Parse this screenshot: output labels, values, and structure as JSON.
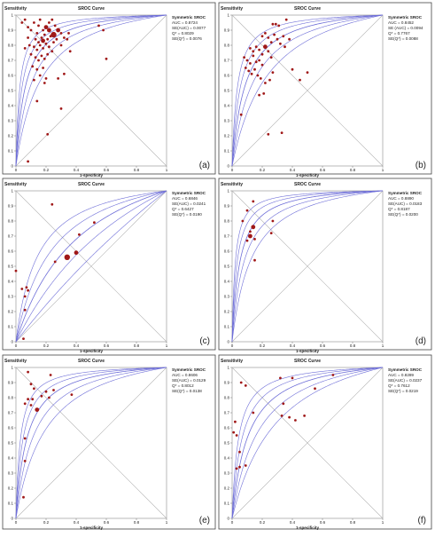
{
  "common": {
    "title": "SROC Curve",
    "xlabel": "1-specificity",
    "ylabel": "Sensitivity",
    "stats_header": "Symmetric SROC",
    "ticks": [
      0,
      0.1,
      0.2,
      0.3,
      0.4,
      0.5,
      0.6,
      0.7,
      0.8,
      0.9,
      1
    ],
    "xticks": [
      0,
      0.2,
      0.4,
      0.6,
      0.8,
      1
    ],
    "point_color": "#a01818",
    "curve_color": "#6f6fd8",
    "diag_color": "#b4b4b4"
  },
  "chart_data": [
    {
      "label": "(a)",
      "type": "scatter",
      "title": "SROC Curve",
      "xlabel": "1-specificity",
      "ylabel": "Sensitivity",
      "xlim": [
        0,
        1
      ],
      "ylim": [
        0,
        1
      ],
      "stats": [
        "AUC = 0.8724",
        "SE(AUC) = 0.0077",
        "Q* = 0.8029",
        "SE(Q*) = 0.0076"
      ],
      "auc": 0.8724,
      "points": [
        {
          "x": 0.04,
          "y": 0.95,
          "s": 1
        },
        {
          "x": 0.06,
          "y": 0.97,
          "s": 1
        },
        {
          "x": 0.08,
          "y": 0.92,
          "s": 1
        },
        {
          "x": 0.1,
          "y": 0.9,
          "s": 1
        },
        {
          "x": 0.12,
          "y": 0.95,
          "s": 1
        },
        {
          "x": 0.14,
          "y": 0.88,
          "s": 1
        },
        {
          "x": 0.15,
          "y": 0.93,
          "s": 1
        },
        {
          "x": 0.16,
          "y": 0.97,
          "s": 1
        },
        {
          "x": 0.18,
          "y": 0.9,
          "s": 1
        },
        {
          "x": 0.2,
          "y": 0.92,
          "s": 2
        },
        {
          "x": 0.22,
          "y": 0.95,
          "s": 1
        },
        {
          "x": 0.24,
          "y": 0.97,
          "s": 1
        },
        {
          "x": 0.26,
          "y": 0.93,
          "s": 1
        },
        {
          "x": 0.28,
          "y": 0.9,
          "s": 2
        },
        {
          "x": 0.3,
          "y": 0.88,
          "s": 1
        },
        {
          "x": 0.32,
          "y": 0.85,
          "s": 1
        },
        {
          "x": 0.34,
          "y": 0.84,
          "s": 1
        },
        {
          "x": 0.35,
          "y": 0.88,
          "s": 1
        },
        {
          "x": 0.13,
          "y": 0.84,
          "s": 1
        },
        {
          "x": 0.15,
          "y": 0.82,
          "s": 1
        },
        {
          "x": 0.17,
          "y": 0.85,
          "s": 1
        },
        {
          "x": 0.19,
          "y": 0.87,
          "s": 1
        },
        {
          "x": 0.21,
          "y": 0.84,
          "s": 1
        },
        {
          "x": 0.23,
          "y": 0.86,
          "s": 1
        },
        {
          "x": 0.25,
          "y": 0.82,
          "s": 1
        },
        {
          "x": 0.27,
          "y": 0.84,
          "s": 1
        },
        {
          "x": 0.12,
          "y": 0.79,
          "s": 1
        },
        {
          "x": 0.14,
          "y": 0.77,
          "s": 1
        },
        {
          "x": 0.16,
          "y": 0.8,
          "s": 1
        },
        {
          "x": 0.18,
          "y": 0.78,
          "s": 1
        },
        {
          "x": 0.2,
          "y": 0.81,
          "s": 1
        },
        {
          "x": 0.22,
          "y": 0.79,
          "s": 1
        },
        {
          "x": 0.24,
          "y": 0.76,
          "s": 1
        },
        {
          "x": 0.1,
          "y": 0.74,
          "s": 1
        },
        {
          "x": 0.13,
          "y": 0.72,
          "s": 1
        },
        {
          "x": 0.15,
          "y": 0.7,
          "s": 1
        },
        {
          "x": 0.17,
          "y": 0.73,
          "s": 1
        },
        {
          "x": 0.19,
          "y": 0.71,
          "s": 1
        },
        {
          "x": 0.21,
          "y": 0.74,
          "s": 1
        },
        {
          "x": 0.11,
          "y": 0.66,
          "s": 1
        },
        {
          "x": 0.14,
          "y": 0.64,
          "s": 1
        },
        {
          "x": 0.18,
          "y": 0.65,
          "s": 1
        },
        {
          "x": 0.16,
          "y": 0.6,
          "s": 1
        },
        {
          "x": 0.2,
          "y": 0.58,
          "s": 1
        },
        {
          "x": 0.12,
          "y": 0.57,
          "s": 1
        },
        {
          "x": 0.19,
          "y": 0.55,
          "s": 1
        },
        {
          "x": 0.08,
          "y": 0.85,
          "s": 1
        },
        {
          "x": 0.06,
          "y": 0.78,
          "s": 1
        },
        {
          "x": 0.09,
          "y": 0.8,
          "s": 1
        },
        {
          "x": 0.3,
          "y": 0.8,
          "s": 1
        },
        {
          "x": 0.36,
          "y": 0.76,
          "s": 1
        },
        {
          "x": 0.55,
          "y": 0.93,
          "s": 1
        },
        {
          "x": 0.58,
          "y": 0.9,
          "s": 1
        },
        {
          "x": 0.6,
          "y": 0.71,
          "s": 1
        },
        {
          "x": 0.32,
          "y": 0.61,
          "s": 1
        },
        {
          "x": 0.28,
          "y": 0.58,
          "s": 1
        },
        {
          "x": 0.14,
          "y": 0.43,
          "s": 1
        },
        {
          "x": 0.3,
          "y": 0.38,
          "s": 1
        },
        {
          "x": 0.21,
          "y": 0.21,
          "s": 1
        },
        {
          "x": 0.08,
          "y": 0.03,
          "s": 1
        },
        {
          "x": 0.25,
          "y": 0.87,
          "s": 3
        },
        {
          "x": 0.18,
          "y": 0.83,
          "s": 2
        },
        {
          "x": 0.22,
          "y": 0.9,
          "s": 2
        }
      ]
    },
    {
      "label": "(b)",
      "type": "scatter",
      "title": "SROC Curve",
      "xlabel": "1-specificity",
      "ylabel": "Sensitivity",
      "xlim": [
        0,
        1
      ],
      "ylim": [
        0,
        1
      ],
      "stats": [
        "AUC = 0.8452",
        "SE (AUC) = 0.0094",
        "Q* = 0.7767",
        "SE(Q*) = 0.0088"
      ],
      "auc": 0.8452,
      "points": [
        {
          "x": 0.27,
          "y": 0.94,
          "s": 1
        },
        {
          "x": 0.29,
          "y": 0.94,
          "s": 1
        },
        {
          "x": 0.31,
          "y": 0.93,
          "s": 1
        },
        {
          "x": 0.36,
          "y": 0.97,
          "s": 1
        },
        {
          "x": 0.2,
          "y": 0.86,
          "s": 1
        },
        {
          "x": 0.22,
          "y": 0.88,
          "s": 1
        },
        {
          "x": 0.24,
          "y": 0.85,
          "s": 1
        },
        {
          "x": 0.26,
          "y": 0.82,
          "s": 1
        },
        {
          "x": 0.28,
          "y": 0.87,
          "s": 1
        },
        {
          "x": 0.3,
          "y": 0.84,
          "s": 1
        },
        {
          "x": 0.34,
          "y": 0.86,
          "s": 1
        },
        {
          "x": 0.38,
          "y": 0.84,
          "s": 1
        },
        {
          "x": 0.12,
          "y": 0.78,
          "s": 1
        },
        {
          "x": 0.14,
          "y": 0.76,
          "s": 1
        },
        {
          "x": 0.16,
          "y": 0.79,
          "s": 1
        },
        {
          "x": 0.18,
          "y": 0.77,
          "s": 1
        },
        {
          "x": 0.2,
          "y": 0.74,
          "s": 1
        },
        {
          "x": 0.22,
          "y": 0.79,
          "s": 2
        },
        {
          "x": 0.24,
          "y": 0.76,
          "s": 1
        },
        {
          "x": 0.26,
          "y": 0.72,
          "s": 1
        },
        {
          "x": 0.08,
          "y": 0.72,
          "s": 1
        },
        {
          "x": 0.1,
          "y": 0.7,
          "s": 1
        },
        {
          "x": 0.12,
          "y": 0.68,
          "s": 1
        },
        {
          "x": 0.14,
          "y": 0.73,
          "s": 1
        },
        {
          "x": 0.16,
          "y": 0.69,
          "s": 1
        },
        {
          "x": 0.18,
          "y": 0.7,
          "s": 1
        },
        {
          "x": 0.2,
          "y": 0.67,
          "s": 1
        },
        {
          "x": 0.09,
          "y": 0.65,
          "s": 1
        },
        {
          "x": 0.11,
          "y": 0.63,
          "s": 1
        },
        {
          "x": 0.13,
          "y": 0.61,
          "s": 1
        },
        {
          "x": 0.15,
          "y": 0.64,
          "s": 1
        },
        {
          "x": 0.17,
          "y": 0.6,
          "s": 1
        },
        {
          "x": 0.19,
          "y": 0.58,
          "s": 1
        },
        {
          "x": 0.22,
          "y": 0.55,
          "s": 1
        },
        {
          "x": 0.25,
          "y": 0.57,
          "s": 1
        },
        {
          "x": 0.27,
          "y": 0.62,
          "s": 1
        },
        {
          "x": 0.4,
          "y": 0.64,
          "s": 1
        },
        {
          "x": 0.5,
          "y": 0.62,
          "s": 1
        },
        {
          "x": 0.45,
          "y": 0.57,
          "s": 1
        },
        {
          "x": 0.18,
          "y": 0.47,
          "s": 1
        },
        {
          "x": 0.21,
          "y": 0.48,
          "s": 1
        },
        {
          "x": 0.06,
          "y": 0.34,
          "s": 1
        },
        {
          "x": 0.24,
          "y": 0.21,
          "s": 1
        },
        {
          "x": 0.33,
          "y": 0.22,
          "s": 1
        },
        {
          "x": 0.32,
          "y": 0.81,
          "s": 1
        },
        {
          "x": 0.35,
          "y": 0.79,
          "s": 1
        }
      ]
    },
    {
      "label": "(c)",
      "type": "scatter",
      "title": "SROC Curve",
      "xlabel": "1-specificity",
      "ylabel": "Sensitivity",
      "xlim": [
        0,
        1
      ],
      "ylim": [
        0,
        1
      ],
      "stats": [
        "AUC = 0.6846",
        "SE(AUC) = 0.0241",
        "Q* = 0.6427",
        "SE(Q*) = 0.0190"
      ],
      "auc": 0.6846,
      "points": [
        {
          "x": 0.24,
          "y": 0.91,
          "s": 1
        },
        {
          "x": 0.52,
          "y": 0.79,
          "s": 1
        },
        {
          "x": 0.42,
          "y": 0.71,
          "s": 1
        },
        {
          "x": 0.4,
          "y": 0.59,
          "s": 2
        },
        {
          "x": 0.34,
          "y": 0.56,
          "s": 3
        },
        {
          "x": 0.26,
          "y": 0.53,
          "s": 1
        },
        {
          "x": 0.0,
          "y": 0.47,
          "s": 1
        },
        {
          "x": 0.04,
          "y": 0.35,
          "s": 1
        },
        {
          "x": 0.07,
          "y": 0.36,
          "s": 1
        },
        {
          "x": 0.08,
          "y": 0.34,
          "s": 1
        },
        {
          "x": 0.06,
          "y": 0.3,
          "s": 1
        },
        {
          "x": 0.06,
          "y": 0.21,
          "s": 1
        },
        {
          "x": 0.05,
          "y": 0.02,
          "s": 1
        }
      ]
    },
    {
      "label": "(d)",
      "type": "scatter",
      "title": "SROC Curve",
      "xlabel": "1-specificity",
      "ylabel": "Sensitivity",
      "xlim": [
        0,
        1
      ],
      "ylim": [
        0,
        1
      ],
      "stats": [
        "Symmetric SROC",
        "AUC = 0.8890",
        "SE(AUC) = 0.0183",
        "Q* = 0.8187",
        "SE(Q*) = 0.0200"
      ],
      "auc": 0.889,
      "points": [
        {
          "x": 0.14,
          "y": 0.93,
          "s": 1
        },
        {
          "x": 0.1,
          "y": 0.87,
          "s": 1
        },
        {
          "x": 0.07,
          "y": 0.8,
          "s": 1
        },
        {
          "x": 0.27,
          "y": 0.8,
          "s": 1
        },
        {
          "x": 0.14,
          "y": 0.76,
          "s": 2
        },
        {
          "x": 0.12,
          "y": 0.73,
          "s": 1
        },
        {
          "x": 0.12,
          "y": 0.7,
          "s": 2
        },
        {
          "x": 0.1,
          "y": 0.67,
          "s": 1
        },
        {
          "x": 0.15,
          "y": 0.68,
          "s": 1
        },
        {
          "x": 0.26,
          "y": 0.72,
          "s": 1
        },
        {
          "x": 0.15,
          "y": 0.54,
          "s": 1
        }
      ]
    },
    {
      "label": "(e)",
      "type": "scatter",
      "title": "SROC Curve",
      "xlabel": "1-specificity",
      "ylabel": "Sensitivity",
      "xlim": [
        0,
        1
      ],
      "ylim": [
        0,
        1
      ],
      "stats": [
        "AUC = 0.8606",
        "SE(AUC) = 0.0129",
        "Q* = 0.8012",
        "SE(Q*) = 0.0138"
      ],
      "auc": 0.8606,
      "points": [
        {
          "x": 0.08,
          "y": 0.97,
          "s": 1
        },
        {
          "x": 0.23,
          "y": 0.95,
          "s": 1
        },
        {
          "x": 0.1,
          "y": 0.89,
          "s": 1
        },
        {
          "x": 0.12,
          "y": 0.86,
          "s": 1
        },
        {
          "x": 0.2,
          "y": 0.84,
          "s": 1
        },
        {
          "x": 0.25,
          "y": 0.85,
          "s": 1
        },
        {
          "x": 0.37,
          "y": 0.82,
          "s": 1
        },
        {
          "x": 0.08,
          "y": 0.79,
          "s": 1
        },
        {
          "x": 0.11,
          "y": 0.79,
          "s": 1
        },
        {
          "x": 0.17,
          "y": 0.81,
          "s": 1
        },
        {
          "x": 0.22,
          "y": 0.8,
          "s": 1
        },
        {
          "x": 0.06,
          "y": 0.76,
          "s": 1
        },
        {
          "x": 0.1,
          "y": 0.75,
          "s": 1
        },
        {
          "x": 0.14,
          "y": 0.72,
          "s": 2
        },
        {
          "x": 0.06,
          "y": 0.53,
          "s": 1
        },
        {
          "x": 0.06,
          "y": 0.38,
          "s": 1
        },
        {
          "x": 0.05,
          "y": 0.14,
          "s": 1
        }
      ]
    },
    {
      "label": "(f)",
      "type": "scatter",
      "title": "SROC Curve",
      "xlabel": "1-specificity",
      "ylabel": "Sensitivity",
      "xlim": [
        0,
        1
      ],
      "ylim": [
        0,
        1
      ],
      "stats": [
        "AUC = 0.8289",
        "SE(AUC) = 0.0237",
        "Q* = 0.7612",
        "SE(Q*) = 0.0219"
      ],
      "auc": 0.8289,
      "points": [
        {
          "x": 0.67,
          "y": 0.95,
          "s": 1
        },
        {
          "x": 0.32,
          "y": 0.93,
          "s": 1
        },
        {
          "x": 0.4,
          "y": 0.93,
          "s": 1
        },
        {
          "x": 0.06,
          "y": 0.9,
          "s": 1
        },
        {
          "x": 0.09,
          "y": 0.88,
          "s": 1
        },
        {
          "x": 0.55,
          "y": 0.86,
          "s": 1
        },
        {
          "x": 0.34,
          "y": 0.76,
          "s": 1
        },
        {
          "x": 0.14,
          "y": 0.7,
          "s": 1
        },
        {
          "x": 0.33,
          "y": 0.68,
          "s": 1
        },
        {
          "x": 0.48,
          "y": 0.68,
          "s": 1
        },
        {
          "x": 0.38,
          "y": 0.67,
          "s": 1
        },
        {
          "x": 0.42,
          "y": 0.65,
          "s": 1
        },
        {
          "x": 0.02,
          "y": 0.64,
          "s": 1
        },
        {
          "x": 0.01,
          "y": 0.57,
          "s": 1
        },
        {
          "x": 0.03,
          "y": 0.55,
          "s": 1
        },
        {
          "x": 0.05,
          "y": 0.44,
          "s": 1
        },
        {
          "x": 0.03,
          "y": 0.33,
          "s": 1
        },
        {
          "x": 0.05,
          "y": 0.34,
          "s": 1
        },
        {
          "x": 0.09,
          "y": 0.35,
          "s": 1
        }
      ]
    }
  ]
}
